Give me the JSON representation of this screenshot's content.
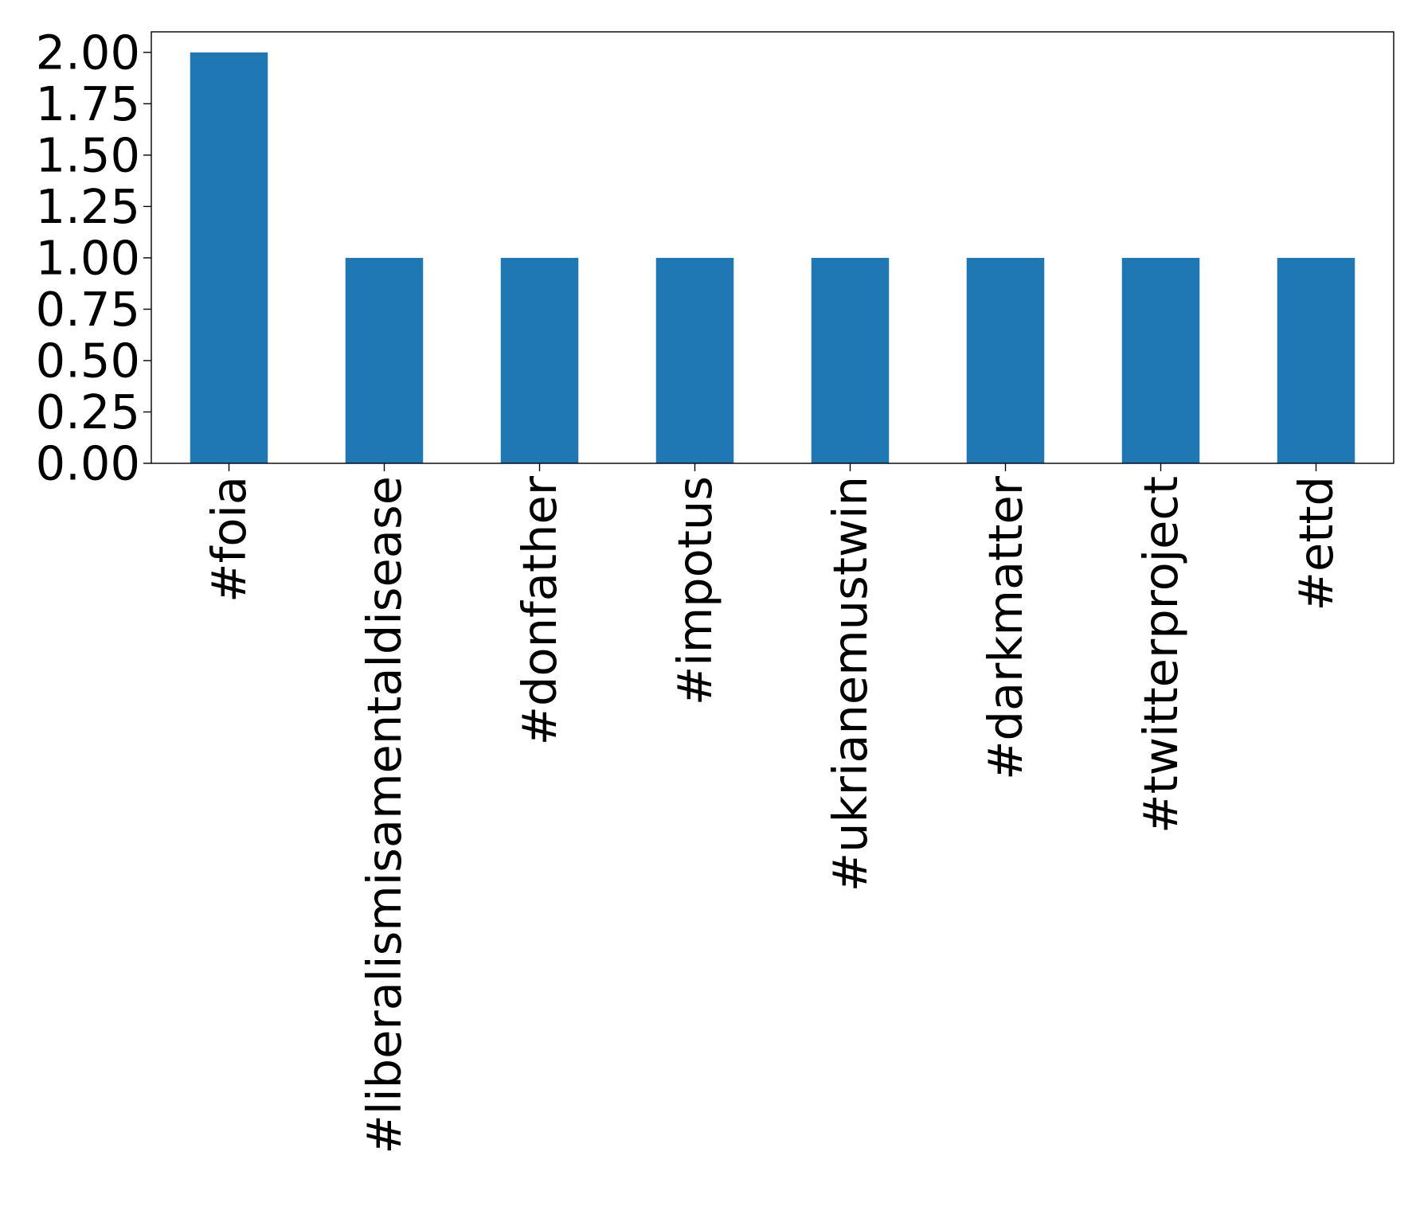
{
  "chart_data": {
    "type": "bar",
    "title": "",
    "xlabel": "",
    "ylabel": "",
    "categories": [
      "#foia",
      "#liberalismisamentaldisease",
      "#donfather",
      "#impotus",
      "#ukrianemustwin",
      "#darkmatter",
      "#twitterproject",
      "#ettd"
    ],
    "values": [
      2,
      1,
      1,
      1,
      1,
      1,
      1,
      1
    ],
    "ylim": [
      0,
      2.1
    ],
    "yticks": [
      "0.00",
      "0.25",
      "0.50",
      "0.75",
      "1.00",
      "1.25",
      "1.50",
      "1.75",
      "2.00"
    ],
    "bar_color": "#1f77b4",
    "grid": false,
    "legend": "none"
  }
}
